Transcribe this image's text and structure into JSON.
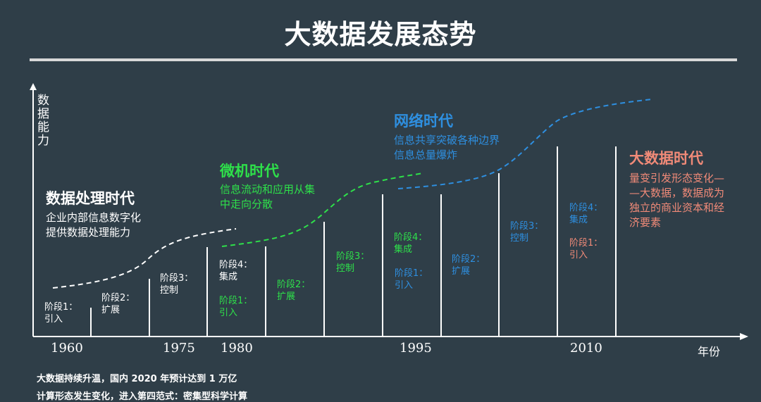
{
  "title": "大数据发展态势",
  "y_axis_label": "数据能力",
  "x_axis_label": "年份",
  "years": [
    "1960",
    "1975",
    "1980",
    "1995",
    "2010"
  ],
  "eras": [
    {
      "title": "数据处理时代",
      "desc": [
        "企业内部信息数字化",
        "提供数据处理能力"
      ],
      "color": "#ffffff"
    },
    {
      "title": "微机时代",
      "desc": [
        "信息流动和应用从集",
        "中走向分散"
      ],
      "color": "#2ee04a"
    },
    {
      "title": "网络时代",
      "desc": [
        "信息共享突破各种边界",
        "信息总量爆炸"
      ],
      "color": "#2e8fe0"
    },
    {
      "title": "大数据时代",
      "desc": [
        "量变引发形态变化—",
        "—大数据，数据成为",
        "独立的商业资本和经",
        "济要素"
      ],
      "color": "#f08a78"
    }
  ],
  "stages": [
    [
      "阶段1：",
      "引入"
    ],
    [
      "阶段2：",
      "扩展"
    ],
    [
      "阶段3：",
      "控制"
    ],
    [
      "阶段4：",
      "集成"
    ]
  ],
  "notes": [
    "大数据持续升温，国内 2020 年预计达到 1 万亿",
    "计算形态发生变化，进入第四范式：密集型科学计算"
  ],
  "colors": {
    "white": "#ffffff",
    "green": "#2ee04a",
    "blue": "#2e8fe0",
    "salmon": "#f08a78",
    "bg": "#2f3e48"
  }
}
